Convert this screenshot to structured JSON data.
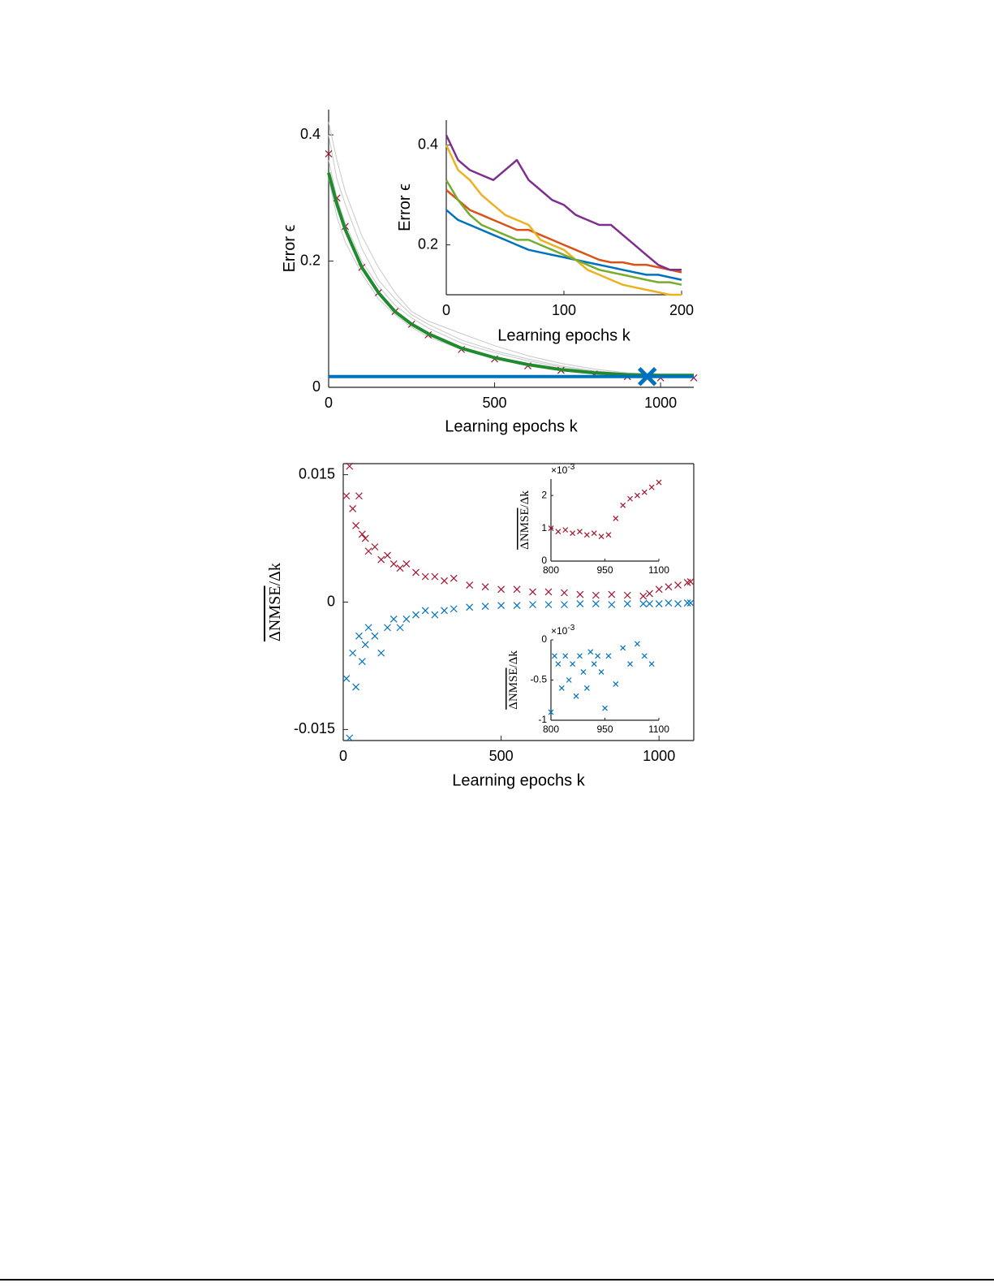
{
  "chart_data": [
    {
      "type": "line",
      "xlabel": "Learning epochs k",
      "ylabel": [
        "Error ϵ"
      ],
      "x": [
        0,
        25,
        50,
        100,
        150,
        200,
        250,
        300,
        400,
        500,
        600,
        700,
        800,
        900,
        1000,
        1100
      ],
      "xlim": [
        0,
        1100
      ],
      "ylim": [
        0,
        0.44
      ],
      "xticks": [
        0,
        500,
        1000
      ],
      "yticks": [
        0,
        0.2,
        0.4
      ],
      "box": false,
      "series": [
        {
          "color": "#c8c8c8",
          "mode": "line",
          "values": [
            0.4,
            0.33,
            0.29,
            0.22,
            0.17,
            0.14,
            0.115,
            0.1,
            0.075,
            0.058,
            0.045,
            0.034,
            0.026,
            0.022,
            0.02,
            0.019
          ]
        },
        {
          "color": "#c8c8c8",
          "mode": "line",
          "values": [
            0.36,
            0.3,
            0.26,
            0.2,
            0.16,
            0.13,
            0.11,
            0.094,
            0.07,
            0.055,
            0.042,
            0.032,
            0.025,
            0.021,
            0.019,
            0.018
          ]
        },
        {
          "color": "#c8c8c8",
          "mode": "line",
          "values": [
            0.42,
            0.36,
            0.31,
            0.24,
            0.19,
            0.15,
            0.12,
            0.105,
            0.085,
            0.066,
            0.05,
            0.038,
            0.029,
            0.023,
            0.02,
            0.019
          ]
        },
        {
          "color": "#c8c8c8",
          "mode": "line",
          "values": [
            0.33,
            0.27,
            0.23,
            0.18,
            0.14,
            0.115,
            0.095,
            0.08,
            0.06,
            0.046,
            0.036,
            0.028,
            0.023,
            0.02,
            0.019,
            0.018
          ]
        },
        {
          "color": "#a2142f",
          "mode": "markers",
          "marker": "x",
          "values": [
            0.37,
            0.3,
            0.255,
            0.19,
            0.15,
            0.12,
            0.1,
            0.083,
            0.06,
            0.045,
            0.034,
            0.027,
            0.021,
            0.017,
            0.015,
            0.015
          ]
        },
        {
          "color": "#1f8a2e",
          "mode": "line",
          "values": [
            0.34,
            0.29,
            0.25,
            0.19,
            0.15,
            0.12,
            0.1,
            0.085,
            0.062,
            0.047,
            0.036,
            0.028,
            0.023,
            0.02,
            0.019,
            0.019
          ]
        },
        {
          "color": "#0072bd",
          "mode": "line",
          "x": [
            0,
            1100
          ],
          "values": [
            0.017,
            0.017
          ]
        },
        {
          "color": "#0072bd",
          "mode": "markers",
          "marker": "X",
          "x": [
            960
          ],
          "values": [
            0.017
          ]
        }
      ]
    },
    {
      "type": "line",
      "xlabel": "Learning epochs k",
      "ylabel": [
        "Error ϵ"
      ],
      "x": [
        0,
        10,
        20,
        30,
        40,
        50,
        60,
        70,
        80,
        90,
        100,
        110,
        120,
        130,
        140,
        150,
        160,
        170,
        180,
        190,
        200
      ],
      "xlim": [
        0,
        200
      ],
      "ylim": [
        0.1,
        0.45
      ],
      "xticks": [
        0,
        100,
        200
      ],
      "yticks": [
        0.2,
        0.4
      ],
      "box": false,
      "series": [
        {
          "color": "#0072bd",
          "mode": "line",
          "values": [
            0.27,
            0.25,
            0.24,
            0.23,
            0.22,
            0.21,
            0.2,
            0.19,
            0.185,
            0.18,
            0.175,
            0.17,
            0.165,
            0.16,
            0.155,
            0.15,
            0.145,
            0.14,
            0.14,
            0.135,
            0.13
          ]
        },
        {
          "color": "#d95319",
          "mode": "line",
          "values": [
            0.31,
            0.29,
            0.27,
            0.26,
            0.25,
            0.24,
            0.23,
            0.23,
            0.22,
            0.21,
            0.2,
            0.19,
            0.18,
            0.17,
            0.165,
            0.165,
            0.16,
            0.16,
            0.155,
            0.15,
            0.145
          ]
        },
        {
          "color": "#edb120",
          "mode": "line",
          "values": [
            0.4,
            0.35,
            0.33,
            0.3,
            0.28,
            0.26,
            0.25,
            0.24,
            0.21,
            0.2,
            0.19,
            0.17,
            0.15,
            0.14,
            0.13,
            0.12,
            0.115,
            0.11,
            0.105,
            0.1,
            0.1
          ]
        },
        {
          "color": "#77ac30",
          "mode": "line",
          "values": [
            0.33,
            0.29,
            0.26,
            0.24,
            0.23,
            0.22,
            0.21,
            0.21,
            0.2,
            0.19,
            0.18,
            0.17,
            0.16,
            0.15,
            0.145,
            0.14,
            0.135,
            0.13,
            0.125,
            0.125,
            0.12
          ]
        },
        {
          "color": "#7e2f8e",
          "mode": "line",
          "values": [
            0.42,
            0.37,
            0.35,
            0.34,
            0.33,
            0.35,
            0.37,
            0.33,
            0.31,
            0.29,
            0.28,
            0.26,
            0.25,
            0.24,
            0.24,
            0.22,
            0.2,
            0.18,
            0.16,
            0.15,
            0.15
          ]
        }
      ]
    },
    {
      "type": "scatter",
      "xlabel": "Learning epochs k",
      "ylabel": [
        "ΔNMSE",
        "/Δk"
      ],
      "x": [
        10,
        20,
        30,
        40,
        50,
        60,
        70,
        80,
        100,
        120,
        140,
        160,
        180,
        200,
        230,
        260,
        290,
        320,
        350,
        400,
        450,
        500,
        550,
        600,
        650,
        700,
        750,
        800,
        850,
        900,
        950,
        970,
        1000,
        1030,
        1060,
        1090,
        1100
      ],
      "xlim": [
        0,
        1110
      ],
      "ylim": [
        -0.0163,
        0.0163
      ],
      "xticks": [
        0,
        500,
        1000
      ],
      "yticks": [
        -0.015,
        0,
        0.015
      ],
      "box": true,
      "series": [
        {
          "color": "#a2142f",
          "mode": "markers",
          "marker": "x",
          "values": [
            0.0125,
            0.016,
            0.011,
            0.009,
            0.0125,
            0.008,
            0.0075,
            0.006,
            0.0065,
            0.005,
            0.0055,
            0.0045,
            0.004,
            0.0045,
            0.0035,
            0.003,
            0.003,
            0.0025,
            0.0028,
            0.002,
            0.0018,
            0.0015,
            0.0015,
            0.0012,
            0.0012,
            0.0011,
            0.0009,
            0.0008,
            0.0009,
            0.0008,
            0.0007,
            0.001,
            0.0015,
            0.0018,
            0.002,
            0.0023,
            0.0024
          ]
        },
        {
          "color": "#0072bd",
          "mode": "markers",
          "marker": "x",
          "values": [
            -0.009,
            -0.016,
            -0.006,
            -0.01,
            -0.004,
            -0.007,
            -0.005,
            -0.003,
            -0.004,
            -0.006,
            -0.003,
            -0.002,
            -0.003,
            -0.002,
            -0.0015,
            -0.001,
            -0.0015,
            -0.001,
            -0.0008,
            -0.0006,
            -0.0005,
            -0.0004,
            -0.0004,
            -0.0003,
            -0.0003,
            -0.0003,
            -0.0002,
            -0.0002,
            -0.0003,
            -0.0002,
            -0.0002,
            -0.0002,
            -0.0002,
            -0.0001,
            -0.0002,
            -0.0001,
            -0.0001
          ]
        }
      ]
    },
    {
      "type": "scatter",
      "ylabel": [
        "ΔNMSE",
        "/Δk"
      ],
      "yscale": [
        "×10",
        "-3"
      ],
      "x": [
        800,
        820,
        840,
        860,
        880,
        900,
        920,
        940,
        960,
        980,
        1000,
        1020,
        1040,
        1060,
        1080,
        1100
      ],
      "xlim": [
        800,
        1100
      ],
      "ylim": [
        0,
        2.5
      ],
      "xticks": [
        800,
        950,
        1100
      ],
      "yticks": [
        0,
        1,
        2
      ],
      "box": false,
      "series": [
        {
          "color": "#a2142f",
          "mode": "markers",
          "marker": "x",
          "values": [
            1.0,
            0.9,
            0.95,
            0.85,
            0.9,
            0.8,
            0.85,
            0.75,
            0.8,
            1.3,
            1.7,
            1.9,
            2.0,
            2.1,
            2.25,
            2.4
          ]
        }
      ]
    },
    {
      "type": "scatter",
      "ylabel": [
        "ΔNMSE",
        "/Δk"
      ],
      "yscale": [
        "×10",
        "-3"
      ],
      "x": [
        800,
        810,
        820,
        830,
        840,
        850,
        860,
        870,
        880,
        890,
        900,
        910,
        920,
        930,
        940,
        950,
        960,
        980,
        1000,
        1020,
        1040,
        1060,
        1080
      ],
      "xlim": [
        800,
        1100
      ],
      "ylim": [
        -1,
        0
      ],
      "xticks": [
        800,
        950,
        1100
      ],
      "yticks": [
        -1,
        -0.5,
        0
      ],
      "box": false,
      "series": [
        {
          "color": "#0072bd",
          "mode": "markers",
          "marker": "x",
          "values": [
            -0.9,
            -0.2,
            -0.3,
            -0.6,
            -0.2,
            -0.5,
            -0.3,
            -0.7,
            -0.2,
            -0.4,
            -0.6,
            -0.15,
            -0.3,
            -0.2,
            -0.4,
            -0.85,
            -0.2,
            -0.55,
            -0.1,
            -0.3,
            -0.05,
            -0.2,
            -0.3
          ]
        }
      ]
    }
  ]
}
